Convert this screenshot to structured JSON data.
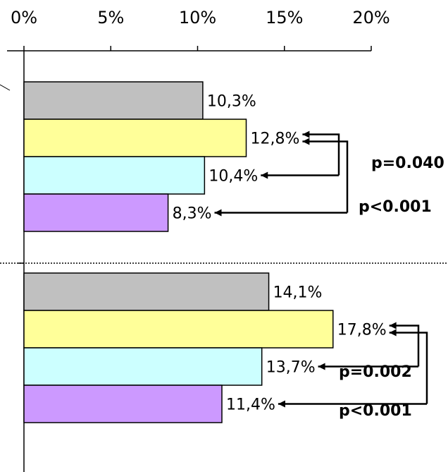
{
  "colors": {
    "series": [
      "#c0c0c0",
      "#ffff99",
      "#ccffff",
      "#cc99ff"
    ],
    "edge": "#000000"
  },
  "chart_data": {
    "type": "bar",
    "orientation": "horizontal",
    "xlim": [
      0,
      20
    ],
    "x_ticks": [
      0,
      5,
      10,
      15,
      20
    ],
    "x_tick_labels": [
      "0%",
      "5%",
      "10%",
      "15%",
      "20%"
    ],
    "x_axis_position": "top",
    "grid": false,
    "legend": "none",
    "groups": [
      {
        "values": [
          10.3,
          12.8,
          10.4,
          8.3
        ],
        "labels": [
          "10,3%",
          "12,8%",
          "10,4%",
          "8,3%"
        ],
        "comparisons": [
          {
            "from": 1,
            "to": 2,
            "label": "p=0.040"
          },
          {
            "from": 1,
            "to": 3,
            "label": "p<0.001"
          }
        ]
      },
      {
        "values": [
          14.1,
          17.8,
          13.7,
          11.4
        ],
        "labels": [
          "14,1%",
          "17,8%",
          "13,7%",
          "11,4%"
        ],
        "comparisons": [
          {
            "from": 1,
            "to": 2,
            "label": "p=0.002"
          },
          {
            "from": 1,
            "to": 3,
            "label": "p<0.001"
          }
        ]
      }
    ]
  }
}
